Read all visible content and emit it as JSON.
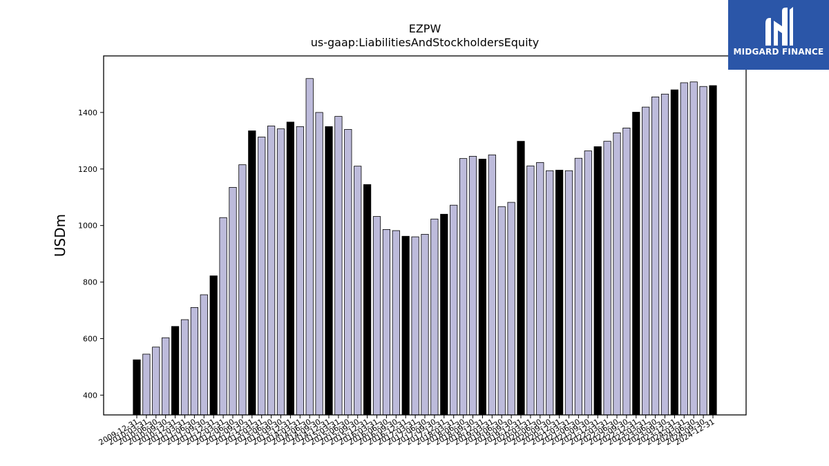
{
  "logo": {
    "text": "MIDGARD FINANCE",
    "icon": "midgard-m-logo-icon",
    "background_color": "#2b56a8"
  },
  "chart_data": {
    "type": "bar",
    "title": "EZPW",
    "subtitle": "us-gaap:LiabilitiesAndStockholdersEquity",
    "xlabel": "",
    "ylabel": "USDm",
    "ylim": [
      330,
      1600
    ],
    "yticks": [
      400,
      600,
      800,
      1000,
      1200,
      1400
    ],
    "grid": false,
    "colors": {
      "fiscal_year_end": "#000000",
      "interim": "#bdbbdb",
      "edge": "#000000"
    },
    "categories": [
      "2009-12-31",
      "2010-03-31",
      "2010-06-30",
      "2010-09-30",
      "2010-12-31",
      "2011-03-31",
      "2011-06-30",
      "2011-09-30",
      "2011-12-31",
      "2012-03-31",
      "2012-06-30",
      "2012-09-30",
      "2012-12-31",
      "2013-03-31",
      "2013-06-30",
      "2013-09-30",
      "2013-12-31",
      "2014-03-31",
      "2014-06-30",
      "2014-09-30",
      "2014-12-31",
      "2015-03-31",
      "2015-06-30",
      "2015-09-30",
      "2015-12-31",
      "2016-03-31",
      "2016-06-30",
      "2016-09-30",
      "2016-12-31",
      "2017-03-31",
      "2017-06-30",
      "2017-09-30",
      "2017-12-31",
      "2018-03-31",
      "2018-06-30",
      "2018-09-30",
      "2018-12-31",
      "2019-03-31",
      "2019-06-30",
      "2019-09-30",
      "2019-12-31",
      "2020-03-31",
      "2020-06-30",
      "2020-09-30",
      "2020-12-31",
      "2021-03-31",
      "2021-06-30",
      "2021-09-30",
      "2021-12-31",
      "2022-03-31",
      "2022-06-30",
      "2022-09-30",
      "2022-12-31",
      "2023-03-31",
      "2023-06-30",
      "2023-09-30",
      "2023-12-31",
      "2024-03-31",
      "2024-06-30",
      "2024-09-30",
      "2024-12-31"
    ],
    "values": [
      525,
      545,
      570,
      603,
      643,
      667,
      710,
      755,
      822,
      1028,
      1135,
      1215,
      1335,
      1313,
      1352,
      1342,
      1366,
      1350,
      1520,
      1400,
      1350,
      1386,
      1340,
      1210,
      1145,
      1032,
      986,
      982,
      962,
      960,
      969,
      1023,
      1040,
      1072,
      1237,
      1245,
      1235,
      1250,
      1067,
      1082,
      1298,
      1211,
      1223,
      1194,
      1196,
      1194,
      1238,
      1264,
      1279,
      1298,
      1328,
      1345,
      1401,
      1419,
      1455,
      1465,
      1480,
      1505,
      1508,
      1492,
      1495
    ],
    "fiscal_year_end": [
      true,
      false,
      false,
      false,
      true,
      false,
      false,
      false,
      true,
      false,
      false,
      false,
      true,
      false,
      false,
      false,
      true,
      false,
      false,
      false,
      true,
      false,
      false,
      false,
      true,
      false,
      false,
      false,
      true,
      false,
      false,
      false,
      true,
      false,
      false,
      false,
      true,
      false,
      false,
      false,
      true,
      false,
      false,
      false,
      true,
      false,
      false,
      false,
      true,
      false,
      false,
      false,
      true,
      false,
      false,
      false,
      true,
      false,
      false,
      false,
      true
    ]
  }
}
